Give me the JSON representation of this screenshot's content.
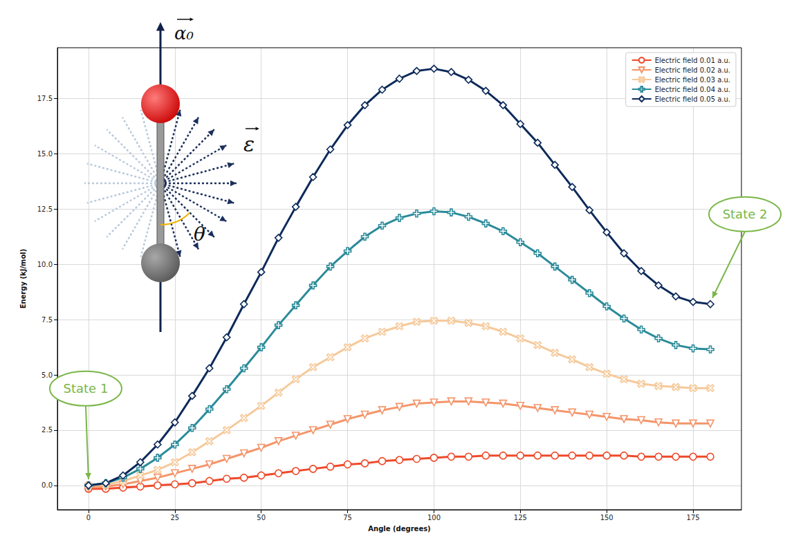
{
  "chart_data": {
    "type": "line",
    "x_label": "Angle (degrees)",
    "y_label": "Energy (kJ/mol)",
    "x": [
      0,
      5,
      10,
      15,
      20,
      25,
      30,
      35,
      40,
      45,
      50,
      55,
      60,
      65,
      70,
      75,
      80,
      85,
      90,
      95,
      100,
      105,
      110,
      115,
      120,
      125,
      130,
      135,
      140,
      145,
      150,
      155,
      160,
      165,
      170,
      175,
      180
    ],
    "xlim": [
      -9,
      189
    ],
    "xticks": [
      0,
      25,
      50,
      75,
      100,
      125,
      150,
      175
    ],
    "ylim": [
      -1.1,
      19.8
    ],
    "yticks": [
      {
        "value": 0,
        "label": "0.0"
      },
      2.5,
      {
        "value": 5,
        "label": "5.0"
      },
      7.5,
      {
        "value": 10,
        "label": "10.0"
      },
      12.5,
      {
        "value": 15,
        "label": "15.0"
      },
      17.5
    ],
    "grid": true,
    "legend": "upper right",
    "series": [
      {
        "name": "Electric field 0.01 a.u.",
        "color": "#ee4a2a",
        "marker": "circle",
        "line_style": "solid",
        "values": [
          -0.15,
          -0.15,
          -0.1,
          -0.05,
          0.0,
          0.05,
          0.1,
          0.2,
          0.3,
          0.35,
          0.45,
          0.55,
          0.65,
          0.75,
          0.85,
          0.95,
          1.0,
          1.1,
          1.15,
          1.2,
          1.25,
          1.3,
          1.3,
          1.35,
          1.35,
          1.35,
          1.35,
          1.35,
          1.35,
          1.35,
          1.35,
          1.35,
          1.3,
          1.3,
          1.3,
          1.3,
          1.3
        ]
      },
      {
        "name": "Electric field 0.02 a.u.",
        "color": "#f4956a",
        "marker": "triangle_down",
        "line_style": "solid",
        "values": [
          -0.1,
          -0.05,
          0.05,
          0.2,
          0.35,
          0.55,
          0.75,
          0.95,
          1.2,
          1.45,
          1.7,
          2.0,
          2.25,
          2.5,
          2.75,
          3.0,
          3.2,
          3.4,
          3.55,
          3.7,
          3.75,
          3.8,
          3.8,
          3.75,
          3.7,
          3.6,
          3.5,
          3.4,
          3.3,
          3.2,
          3.1,
          3.0,
          2.95,
          2.85,
          2.8,
          2.8,
          2.8
        ]
      },
      {
        "name": "Electric field 0.03 a.u.",
        "color": "#f6c99a",
        "marker": "x",
        "line_style": "solid",
        "values": [
          0.0,
          0.02,
          0.2,
          0.45,
          0.7,
          1.05,
          1.5,
          2.0,
          2.5,
          3.05,
          3.6,
          4.2,
          4.8,
          5.35,
          5.8,
          6.25,
          6.65,
          6.95,
          7.2,
          7.4,
          7.45,
          7.45,
          7.35,
          7.2,
          6.95,
          6.65,
          6.35,
          6.0,
          5.7,
          5.35,
          5.05,
          4.8,
          4.6,
          4.5,
          4.45,
          4.4,
          4.4
        ]
      },
      {
        "name": "Electric field 0.04 a.u.",
        "color": "#2a8b9a",
        "marker": "plus",
        "line_style": "solid",
        "values": [
          0.0,
          0.1,
          0.35,
          0.75,
          1.25,
          1.85,
          2.6,
          3.45,
          4.35,
          5.3,
          6.25,
          7.25,
          8.15,
          9.05,
          9.9,
          10.6,
          11.25,
          11.75,
          12.1,
          12.3,
          12.4,
          12.35,
          12.15,
          11.85,
          11.5,
          11.0,
          10.5,
          9.9,
          9.3,
          8.7,
          8.1,
          7.55,
          7.05,
          6.65,
          6.35,
          6.2,
          6.15
        ]
      },
      {
        "name": "Electric field 0.05 a.u.",
        "color": "#0c2a5a",
        "marker": "diamond",
        "line_style": "solid",
        "values": [
          0.0,
          0.1,
          0.45,
          1.05,
          1.85,
          2.85,
          4.05,
          5.3,
          6.7,
          8.2,
          9.65,
          11.2,
          12.6,
          13.95,
          15.2,
          16.3,
          17.2,
          17.9,
          18.4,
          18.75,
          18.85,
          18.7,
          18.35,
          17.85,
          17.2,
          16.35,
          15.5,
          14.5,
          13.5,
          12.45,
          11.45,
          10.5,
          9.7,
          9.05,
          8.55,
          8.3,
          8.2
        ]
      }
    ],
    "annotations": [
      {
        "text": "State 1",
        "x": 0,
        "y": 0
      },
      {
        "text": "State 2",
        "x": 180,
        "y": 8.2
      }
    ],
    "inset_labels": [
      "α₀",
      "ε",
      "θ"
    ]
  }
}
